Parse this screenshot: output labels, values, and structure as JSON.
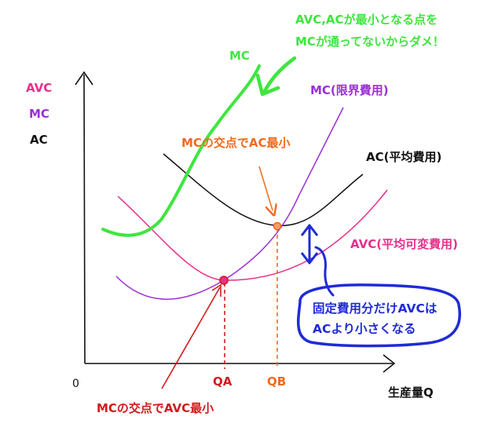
{
  "colors": {
    "green": "#3ee63e",
    "pink": "#e82f8c",
    "purple": "#9a2fd6",
    "black": "#111111",
    "orange": "#f06a1e",
    "red": "#d31b1b",
    "blue": "#1f2bd6"
  },
  "legend": {
    "avc": "AVC",
    "mc": "MC",
    "ac": "AC"
  },
  "axes": {
    "origin": "0",
    "x_label": "生産量Q",
    "qa": "QA",
    "qb": "QB"
  },
  "curves": {
    "green_mc": "MC",
    "mc": "MC(限界費用)",
    "ac": "AC(平均費用)",
    "avc": "AVC(平均可変費用)"
  },
  "notes": {
    "green_line1": "AVC,ACが最小となる点を",
    "green_line2": "MCが通ってないからダメ！",
    "ac_min": "MCの交点でAC最小",
    "avc_min": "MCの交点でAVC最小",
    "blue_line1": "固定費用分だけAVCは",
    "blue_line2": "ACより小さくなる"
  }
}
